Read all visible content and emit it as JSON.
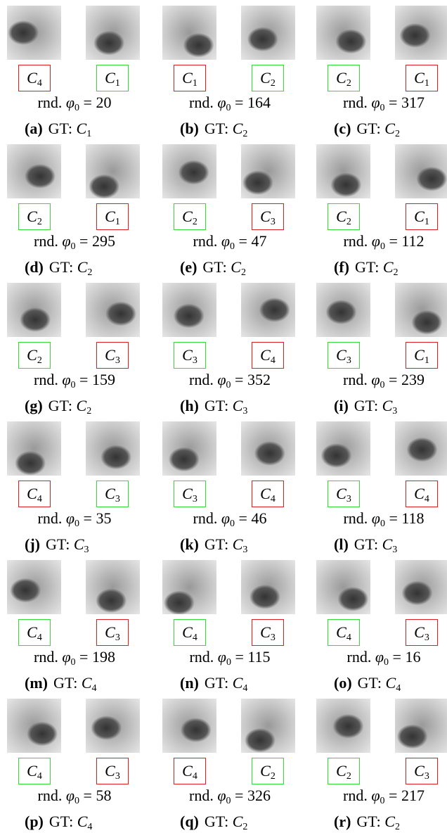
{
  "panels": [
    {
      "letter": "(a)",
      "gt": "GT: C1",
      "caption": "rnd. φ0 = 20",
      "labels": [
        {
          "text": "C4",
          "correct": false
        },
        {
          "text": "C1",
          "correct": true
        }
      ]
    },
    {
      "letter": "(b)",
      "gt": "GT: C2",
      "caption": "rnd. φ0 = 164",
      "labels": [
        {
          "text": "C1",
          "correct": false
        },
        {
          "text": "C2",
          "correct": true
        }
      ]
    },
    {
      "letter": "(c)",
      "gt": "GT: C2",
      "caption": "rnd. φ0 = 317",
      "labels": [
        {
          "text": "C2",
          "correct": true
        },
        {
          "text": "C1",
          "correct": false
        }
      ]
    },
    {
      "letter": "(d)",
      "gt": "GT: C2",
      "caption": "rnd. φ0 = 295",
      "labels": [
        {
          "text": "C2",
          "correct": true
        },
        {
          "text": "C1",
          "correct": false
        }
      ]
    },
    {
      "letter": "(e)",
      "gt": "GT: C2",
      "caption": "rnd. φ0 = 47",
      "labels": [
        {
          "text": "C2",
          "correct": true
        },
        {
          "text": "C3",
          "correct": false
        }
      ]
    },
    {
      "letter": "(f)",
      "gt": "GT: C2",
      "caption": "rnd. φ0 = 112",
      "labels": [
        {
          "text": "C2",
          "correct": true
        },
        {
          "text": "C1",
          "correct": false
        }
      ]
    },
    {
      "letter": "(g)",
      "gt": "GT: C2",
      "caption": "rnd. φ0 = 159",
      "labels": [
        {
          "text": "C2",
          "correct": true
        },
        {
          "text": "C3",
          "correct": false
        }
      ]
    },
    {
      "letter": "(h)",
      "gt": "GT: C3",
      "caption": "rnd. φ0 = 352",
      "labels": [
        {
          "text": "C3",
          "correct": true
        },
        {
          "text": "C4",
          "correct": false
        }
      ]
    },
    {
      "letter": "(i)",
      "gt": "GT: C3",
      "caption": "rnd. φ0 = 239",
      "labels": [
        {
          "text": "C3",
          "correct": true
        },
        {
          "text": "C1",
          "correct": false
        }
      ]
    },
    {
      "letter": "(j)",
      "gt": "GT: C3",
      "caption": "rnd. φ0 = 35",
      "labels": [
        {
          "text": "C4",
          "correct": false
        },
        {
          "text": "C3",
          "correct": true
        }
      ]
    },
    {
      "letter": "(k)",
      "gt": "GT: C3",
      "caption": "rnd. φ0 = 46",
      "labels": [
        {
          "text": "C3",
          "correct": true
        },
        {
          "text": "C4",
          "correct": false
        }
      ]
    },
    {
      "letter": "(l)",
      "gt": "GT: C3",
      "caption": "rnd. φ0 = 118",
      "labels": [
        {
          "text": "C3",
          "correct": true
        },
        {
          "text": "C4",
          "correct": false
        }
      ]
    },
    {
      "letter": "(m)",
      "gt": "GT: C4",
      "caption": "rnd. φ0 = 198",
      "labels": [
        {
          "text": "C4",
          "correct": true
        },
        {
          "text": "C3",
          "correct": false
        }
      ]
    },
    {
      "letter": "(n)",
      "gt": "GT: C4",
      "caption": "rnd. φ0 = 115",
      "labels": [
        {
          "text": "C4",
          "correct": true
        },
        {
          "text": "C3",
          "correct": false
        }
      ]
    },
    {
      "letter": "(o)",
      "gt": "GT: C4",
      "caption": "rnd. φ0 = 16",
      "labels": [
        {
          "text": "C4",
          "correct": true
        },
        {
          "text": "C3",
          "correct": false
        }
      ]
    },
    {
      "letter": "(p)",
      "gt": "GT: C4",
      "caption": "rnd. φ0 = 58",
      "labels": [
        {
          "text": "C4",
          "correct": true
        },
        {
          "text": "C3",
          "correct": false
        }
      ]
    },
    {
      "letter": "(q)",
      "gt": "GT: C2",
      "caption": "rnd. φ0 = 326",
      "labels": [
        {
          "text": "C4",
          "correct": false
        },
        {
          "text": "C2",
          "correct": true
        }
      ]
    },
    {
      "letter": "(r)",
      "gt": "GT: C2",
      "caption": "rnd. φ0 = 217",
      "labels": [
        {
          "text": "C2",
          "correct": true
        },
        {
          "text": "C3",
          "correct": false
        }
      ]
    }
  ]
}
